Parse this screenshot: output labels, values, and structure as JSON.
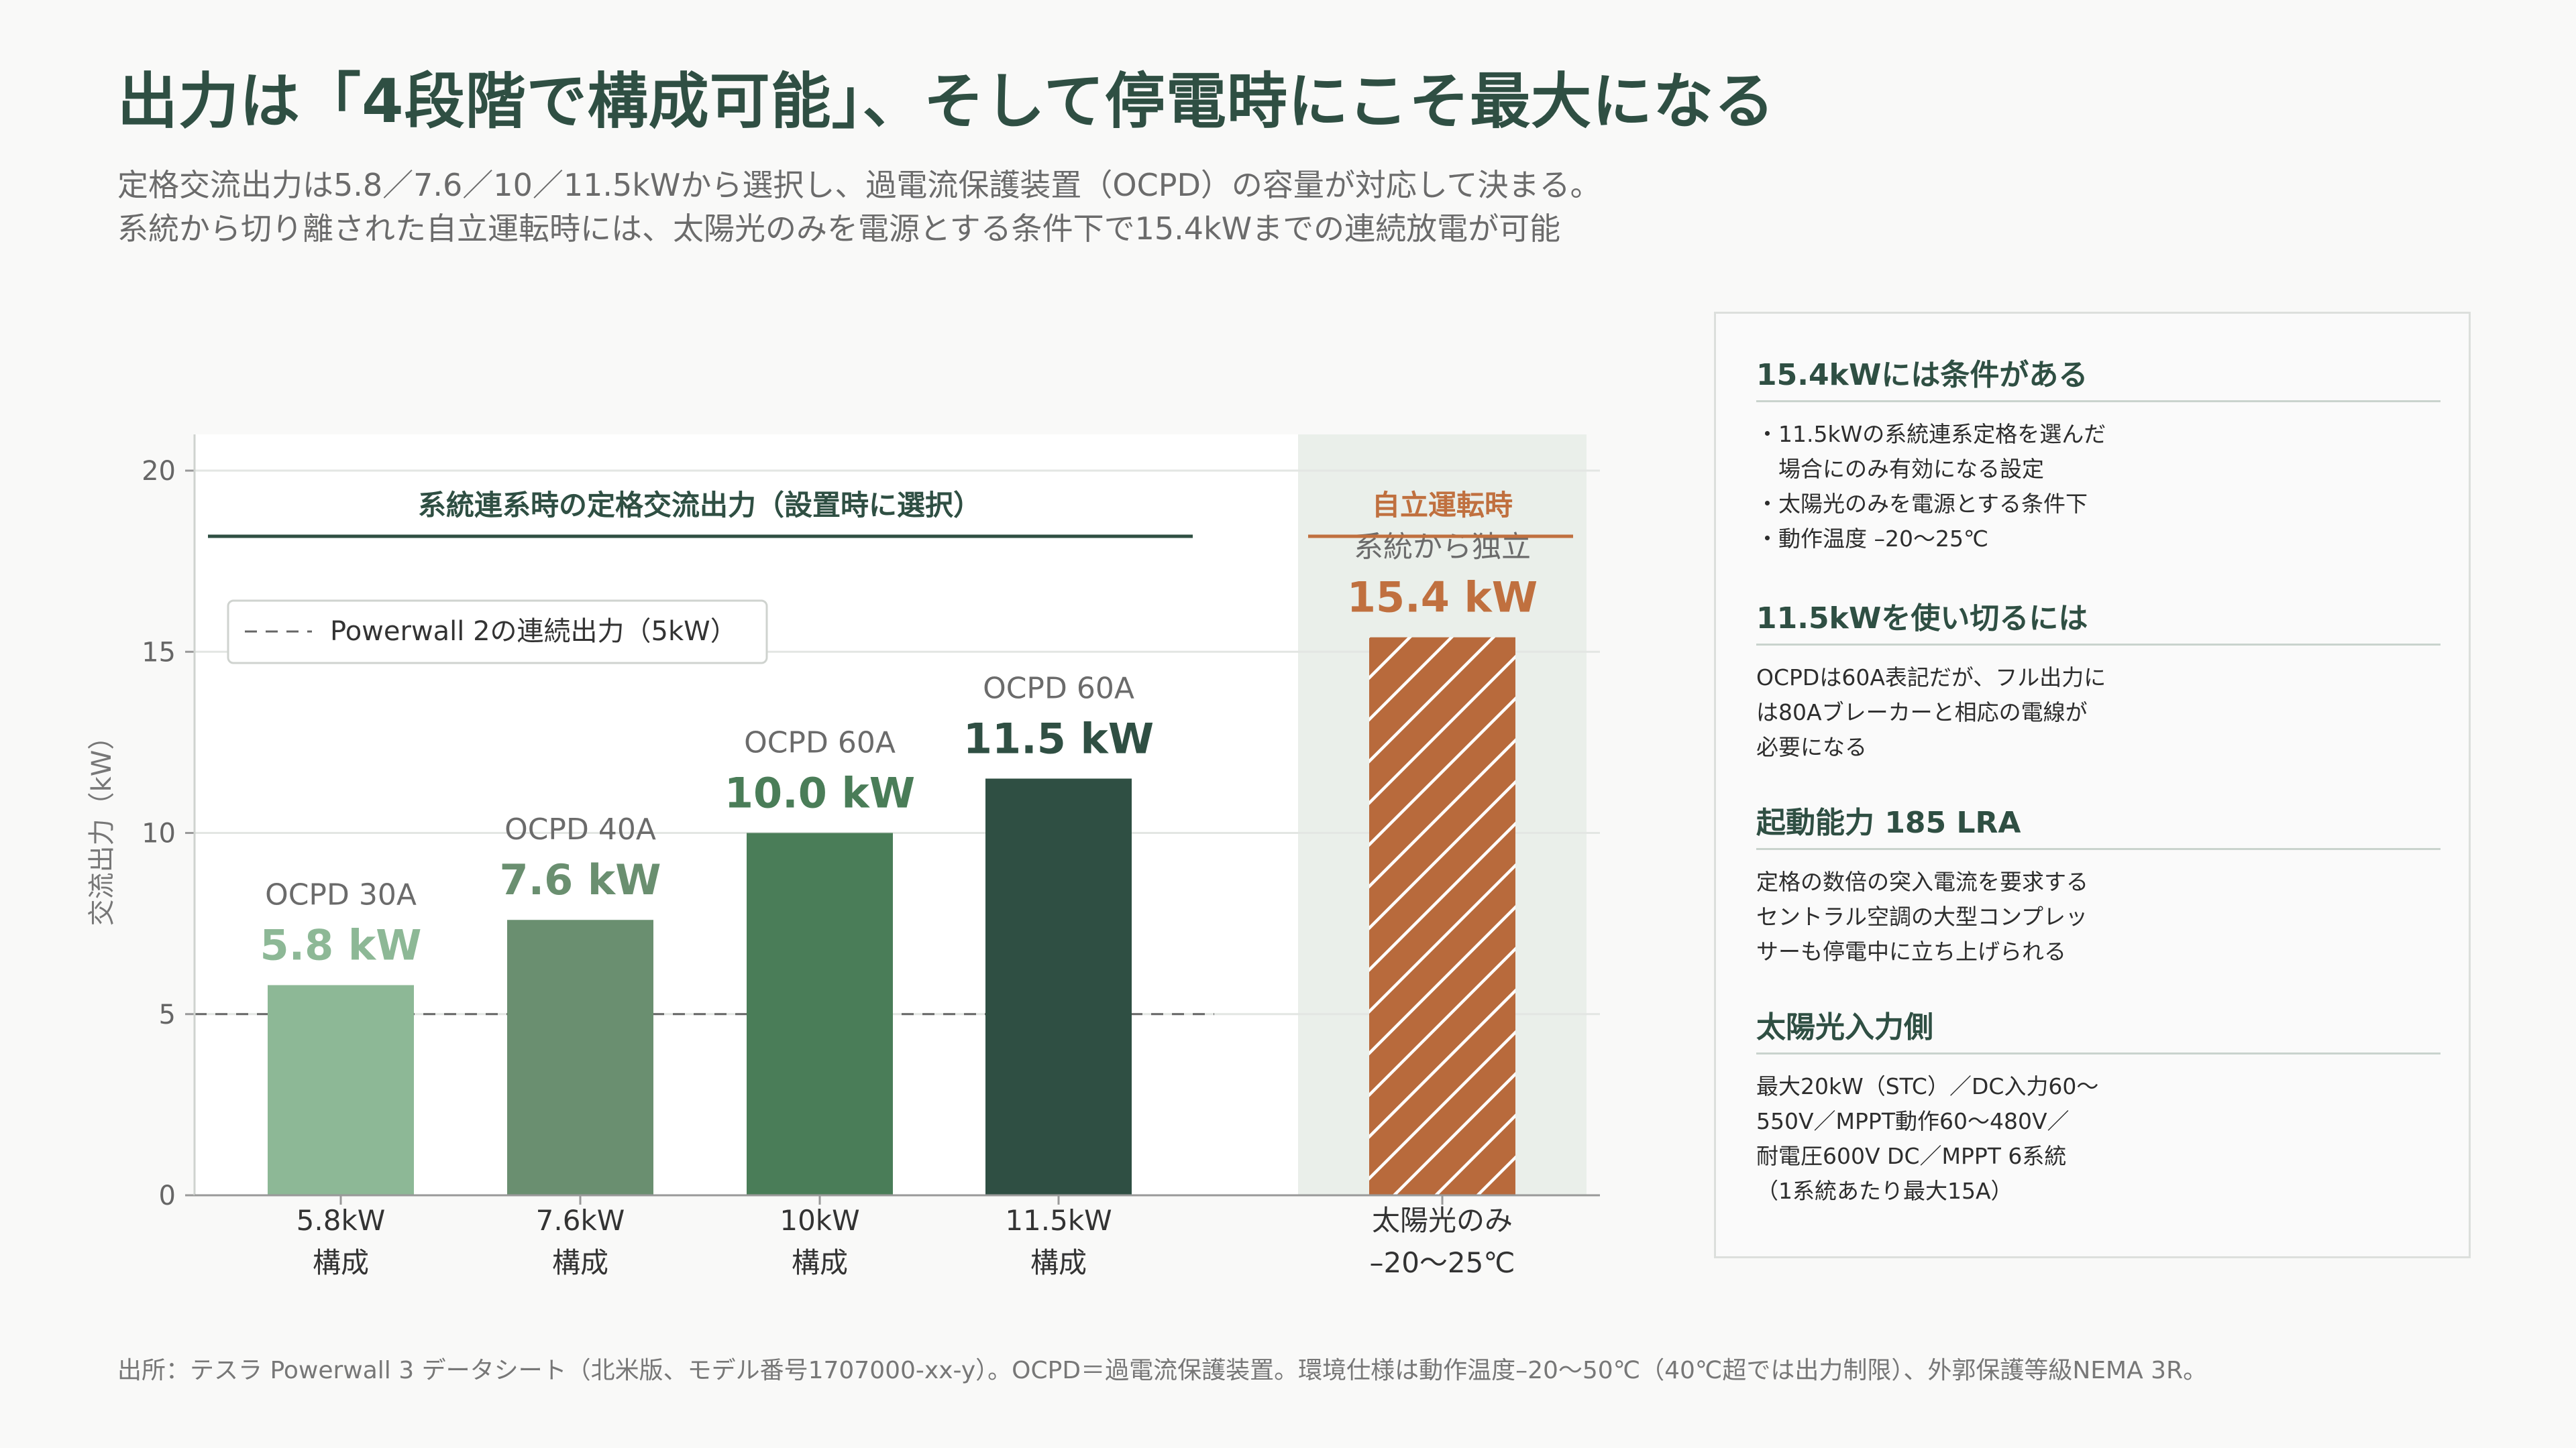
{
  "header": {
    "title": "出力は「4段階で構成可能」、そして停電時にこそ最大になる",
    "subtitle_line1": "定格交流出力は5.8／7.6／10／11.5kWから選択し、過電流保護装置（OCPD）の容量が対応して決まる。",
    "subtitle_line2": "系統から切り離された自立運転時には、太陽光のみを電源とする条件下で15.4kWまでの連続放電が可能"
  },
  "chart_data": {
    "type": "bar",
    "ylabel": "交流出力（kW）",
    "ylim": [
      0,
      21
    ],
    "yticks": [
      0,
      5,
      10,
      15,
      20
    ],
    "grid": true,
    "legend": {
      "placement": "top-left",
      "label": "Powerwall 2の連続出力（5kW）"
    },
    "reference_line": {
      "value": 5
    },
    "group_labels": {
      "grid_tied": "系統連系時の定格交流出力（設置時に選択）",
      "islanded": "自立運転時"
    },
    "bars": [
      {
        "group": "grid_tied",
        "category_line1": "5.8kW",
        "category_line2": "構成",
        "value": 5.8,
        "value_label": "5.8 kW",
        "ocpd": "OCPD 30A",
        "color": "#8db896"
      },
      {
        "group": "grid_tied",
        "category_line1": "7.6kW",
        "category_line2": "構成",
        "value": 7.6,
        "value_label": "7.6 kW",
        "ocpd": "OCPD 40A",
        "color": "#6a8f70"
      },
      {
        "group": "grid_tied",
        "category_line1": "10kW",
        "category_line2": "構成",
        "value": 10.0,
        "value_label": "10.0 kW",
        "ocpd": "OCPD 60A",
        "color": "#4a7d58"
      },
      {
        "group": "grid_tied",
        "category_line1": "11.5kW",
        "category_line2": "構成",
        "value": 11.5,
        "value_label": "11.5 kW",
        "ocpd": "OCPD 60A",
        "color": "#2f4f43"
      },
      {
        "group": "islanded",
        "category_line1": "太陽光のみ",
        "category_line2": "–20〜25℃",
        "value": 15.4,
        "value_label": "15.4 kW",
        "ocpd": "系統から独立",
        "color": "#b86a3c",
        "hatched": true
      }
    ],
    "colors": {
      "accent": "#c0703f",
      "dark_green": "#2f4f43",
      "islanded_band": "#eaefea"
    }
  },
  "sidebar": {
    "sections": [
      {
        "title": "15.4kWには条件がある",
        "lines": [
          "・11.5kWの系統連系定格を選んだ",
          "　場合にのみ有効になる設定",
          "・太陽光のみを電源とする条件下",
          "・動作温度 –20〜25℃"
        ]
      },
      {
        "title": "11.5kWを使い切るには",
        "lines": [
          "OCPDは60A表記だが、フル出力に",
          "は80Aブレーカーと相応の電線が",
          "必要になる"
        ]
      },
      {
        "title": "起動能力 185 LRA",
        "lines": [
          "定格の数倍の突入電流を要求する",
          "セントラル空調の大型コンプレッ",
          "サーも停電中に立ち上げられる"
        ]
      },
      {
        "title": "太陽光入力側",
        "lines": [
          "最大20kW（STC）／DC入力60〜",
          "550V／MPPT動作60〜480V／",
          "耐電圧600V DC／MPPT 6系統",
          "（1系統あたり最大15A）"
        ]
      }
    ]
  },
  "footer": {
    "source": "出所：テスラ Powerwall 3 データシート（北米版、モデル番号1707000-xx-y）。OCPD＝過電流保護装置。環境仕様は動作温度–20〜50℃（40℃超では出力制限）、外郭保護等級NEMA 3R。"
  }
}
